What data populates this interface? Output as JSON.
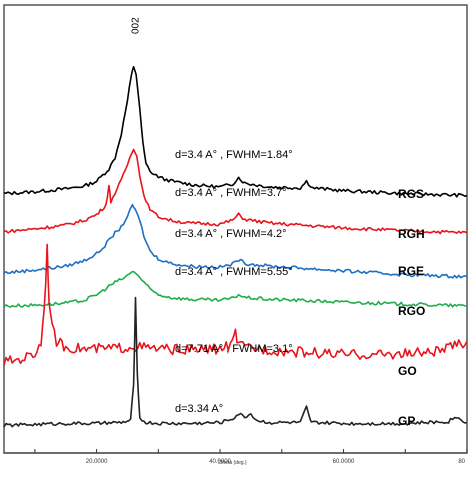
{
  "chart_data": {
    "type": "line",
    "title": "",
    "xlabel": "2theta (deg.)",
    "ylabel": "",
    "xlim": [
      5,
      80
    ],
    "x_ticks": [
      "20.0000",
      "40.0000",
      "60.0000",
      "80"
    ],
    "x_tick_values": [
      20,
      40,
      60,
      80
    ],
    "grid": false,
    "peak_annotation": "002",
    "series": [
      {
        "name": "RGS",
        "color": "#000000",
        "annotation": "d=3.4 A° , FWHM=1.84°",
        "offset": 5,
        "points": [
          [
            5,
            1.2
          ],
          [
            10,
            1.4
          ],
          [
            15,
            1.7
          ],
          [
            18,
            2.0
          ],
          [
            20,
            2.5
          ],
          [
            22,
            3.8
          ],
          [
            23,
            5
          ],
          [
            24,
            7.5
          ],
          [
            25,
            11
          ],
          [
            25.6,
            13.5
          ],
          [
            26,
            14.6
          ],
          [
            26.4,
            13.8
          ],
          [
            27,
            10
          ],
          [
            27.5,
            6.5
          ],
          [
            28,
            4.3
          ],
          [
            29,
            3.3
          ],
          [
            30,
            3
          ],
          [
            31,
            2.7
          ],
          [
            33,
            2.4
          ],
          [
            36,
            2.1
          ],
          [
            40,
            1.9
          ],
          [
            42,
            2.2
          ],
          [
            43,
            2.9
          ],
          [
            44,
            2.3
          ],
          [
            48,
            1.9
          ],
          [
            53,
            1.8
          ],
          [
            54,
            2.5
          ],
          [
            55,
            1.8
          ],
          [
            60,
            1.5
          ],
          [
            70,
            1.2
          ],
          [
            80,
            1.0
          ]
        ]
      },
      {
        "name": "RGH",
        "color": "#e8141b",
        "annotation": "d=3.4 A° , FWHM=3.7°",
        "offset": 4,
        "points": [
          [
            5,
            1.4
          ],
          [
            10,
            1.7
          ],
          [
            15,
            2.1
          ],
          [
            18,
            2.6
          ],
          [
            20,
            3.2
          ],
          [
            21.5,
            4.2
          ],
          [
            22,
            6.2
          ],
          [
            22.3,
            4.6
          ],
          [
            23,
            5.5
          ],
          [
            24,
            6.8
          ],
          [
            25,
            8.5
          ],
          [
            26,
            10.2
          ],
          [
            26.5,
            9.5
          ],
          [
            27,
            7.2
          ],
          [
            28,
            4.5
          ],
          [
            29,
            3.5
          ],
          [
            30,
            3.0
          ],
          [
            32,
            2.6
          ],
          [
            35,
            2.3
          ],
          [
            40,
            2.2
          ],
          [
            42,
            2.6
          ],
          [
            43,
            3.2
          ],
          [
            44,
            2.7
          ],
          [
            48,
            2.3
          ],
          [
            53,
            2.1
          ],
          [
            60,
            1.8
          ],
          [
            70,
            1.5
          ],
          [
            80,
            1.3
          ]
        ]
      },
      {
        "name": "RGE",
        "color": "#1f6fc4",
        "annotation": "d=3.4 A° , FWHM=4.2°",
        "offset": 3,
        "points": [
          [
            5,
            1.6
          ],
          [
            10,
            1.9
          ],
          [
            15,
            2.3
          ],
          [
            18,
            2.9
          ],
          [
            20,
            3.6
          ],
          [
            21,
            4.2
          ],
          [
            22,
            5.0
          ],
          [
            23,
            5.8
          ],
          [
            24,
            6.4
          ],
          [
            25,
            7.6
          ],
          [
            25.8,
            8.6
          ],
          [
            26.2,
            8.4
          ],
          [
            27,
            7.0
          ],
          [
            28,
            4.8
          ],
          [
            29,
            3.6
          ],
          [
            30,
            3.1
          ],
          [
            32,
            2.6
          ],
          [
            35,
            2.3
          ],
          [
            40,
            2.2
          ],
          [
            42,
            2.5
          ],
          [
            43,
            3.0
          ],
          [
            44,
            2.6
          ],
          [
            48,
            2.3
          ],
          [
            53,
            2.1
          ],
          [
            60,
            1.8
          ],
          [
            70,
            1.4
          ],
          [
            80,
            1.2
          ]
        ]
      },
      {
        "name": "RGO",
        "color": "#1fae4b",
        "annotation": "d=3.4 A° , FWHM=5.55°",
        "offset": 2,
        "points": [
          [
            5,
            2.0
          ],
          [
            10,
            2.1
          ],
          [
            15,
            2.3
          ],
          [
            18,
            2.6
          ],
          [
            20,
            3.2
          ],
          [
            21,
            3.6
          ],
          [
            22,
            4.1
          ],
          [
            23,
            4.5
          ],
          [
            24,
            4.8
          ],
          [
            25,
            5.2
          ],
          [
            26,
            5.7
          ],
          [
            27,
            5.0
          ],
          [
            28,
            4.2
          ],
          [
            29,
            3.6
          ],
          [
            30,
            3.2
          ],
          [
            32,
            2.9
          ],
          [
            35,
            2.7
          ],
          [
            40,
            2.6
          ],
          [
            42,
            2.8
          ],
          [
            43,
            3.2
          ],
          [
            44,
            2.9
          ],
          [
            48,
            2.7
          ],
          [
            53,
            2.6
          ],
          [
            60,
            2.4
          ],
          [
            70,
            2.2
          ],
          [
            80,
            2.0
          ]
        ]
      },
      {
        "name": "GO",
        "color": "#e8141b",
        "annotation": "d=7.71 A° , FWHM=3.1°",
        "offset": 1,
        "points": [
          [
            5,
            2.4
          ],
          [
            8,
            2.8
          ],
          [
            10,
            3.3
          ],
          [
            11,
            4.5
          ],
          [
            11.5,
            8
          ],
          [
            12,
            14.5
          ],
          [
            12.3,
            9
          ],
          [
            12.8,
            6
          ],
          [
            13.5,
            4.6
          ],
          [
            15,
            4.0
          ],
          [
            18,
            3.8
          ],
          [
            20,
            3.8
          ],
          [
            24,
            3.9
          ],
          [
            26,
            4.1
          ],
          [
            28,
            3.9
          ],
          [
            30,
            3.8
          ],
          [
            35,
            3.7
          ],
          [
            40,
            3.8
          ],
          [
            42,
            4.3
          ],
          [
            42.5,
            5.6
          ],
          [
            43,
            4.1
          ],
          [
            45,
            3.9
          ],
          [
            50,
            3.6
          ],
          [
            55,
            3.4
          ],
          [
            60,
            3.2
          ],
          [
            65,
            3.2
          ],
          [
            70,
            3.3
          ],
          [
            75,
            3.5
          ],
          [
            78,
            4.1
          ],
          [
            80,
            4.6
          ]
        ]
      },
      {
        "name": "GP",
        "color": "#222222",
        "annotation": "d=3.34 A°",
        "offset": 0,
        "points": [
          [
            5,
            0.7
          ],
          [
            10,
            0.8
          ],
          [
            15,
            0.9
          ],
          [
            20,
            0.9
          ],
          [
            24,
            1.0
          ],
          [
            25.5,
            1.2
          ],
          [
            26,
            5.0
          ],
          [
            26.3,
            14.0
          ],
          [
            26.6,
            6.0
          ],
          [
            27,
            1.4
          ],
          [
            28,
            1.0
          ],
          [
            30,
            0.9
          ],
          [
            35,
            0.9
          ],
          [
            40,
            1.0
          ],
          [
            42,
            1.4
          ],
          [
            43,
            1.9
          ],
          [
            44,
            1.6
          ],
          [
            45,
            1.9
          ],
          [
            46,
            1.2
          ],
          [
            48,
            1.0
          ],
          [
            53,
            1.0
          ],
          [
            54,
            2.6
          ],
          [
            54.6,
            1.2
          ],
          [
            55,
            1.0
          ],
          [
            60,
            0.9
          ],
          [
            70,
            0.9
          ],
          [
            77,
            1.1
          ],
          [
            78,
            1.6
          ],
          [
            80,
            1.0
          ]
        ]
      }
    ]
  }
}
